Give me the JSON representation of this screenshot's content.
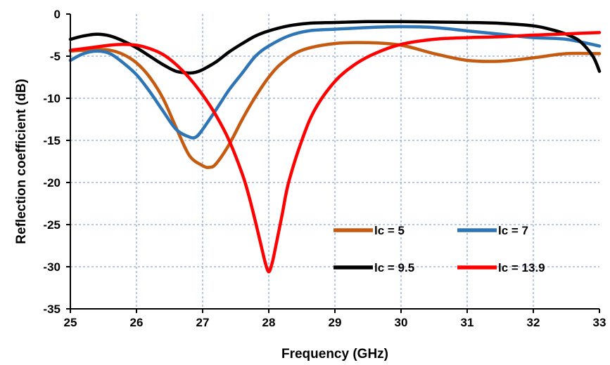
{
  "chart_data": {
    "type": "line",
    "title": "",
    "xlabel": "Frequency (GHz)",
    "ylabel": "Reflection coefficient (dB)",
    "xlim": [
      25,
      33
    ],
    "ylim": [
      -35,
      0
    ],
    "xticks": [
      "25",
      "26",
      "27",
      "28",
      "29",
      "30",
      "31",
      "32",
      "33"
    ],
    "yticks": [
      "0",
      "-5",
      "-10",
      "-15",
      "-20",
      "-25",
      "-30",
      "-35"
    ],
    "grid": true,
    "legend_position": "bottom-right",
    "series": [
      {
        "name": "lc = 5",
        "color": "#C55A11",
        "x": [
          25.0,
          25.2,
          25.4,
          25.6,
          25.8,
          26.0,
          26.2,
          26.4,
          26.6,
          26.8,
          27.0,
          27.1,
          27.2,
          27.4,
          27.6,
          27.8,
          28.0,
          28.2,
          28.5,
          29.0,
          29.5,
          30.0,
          30.5,
          31.0,
          31.5,
          32.0,
          32.5,
          33.0
        ],
        "y": [
          -4.4,
          -4.3,
          -4.2,
          -4.3,
          -4.8,
          -5.8,
          -7.5,
          -10.0,
          -13.5,
          -16.8,
          -18.0,
          -18.2,
          -17.8,
          -15.5,
          -12.5,
          -9.8,
          -7.5,
          -5.8,
          -4.3,
          -3.5,
          -3.4,
          -3.7,
          -4.7,
          -5.5,
          -5.6,
          -5.2,
          -4.7,
          -4.7
        ]
      },
      {
        "name": "lc = 7",
        "color": "#2E75B6",
        "x": [
          25.0,
          25.2,
          25.4,
          25.6,
          25.8,
          26.0,
          26.2,
          26.4,
          26.6,
          26.8,
          26.9,
          27.0,
          27.2,
          27.4,
          27.6,
          27.8,
          28.0,
          28.3,
          28.6,
          29.0,
          29.5,
          30.0,
          30.5,
          31.0,
          31.5,
          32.0,
          32.5,
          33.0
        ],
        "y": [
          -5.5,
          -4.7,
          -4.4,
          -4.7,
          -5.8,
          -7.2,
          -9.2,
          -11.5,
          -13.7,
          -14.6,
          -14.6,
          -13.7,
          -11.4,
          -9.0,
          -7.0,
          -5.0,
          -3.8,
          -2.6,
          -2.0,
          -1.8,
          -1.6,
          -1.5,
          -1.6,
          -2.0,
          -2.4,
          -2.8,
          -3.0,
          -3.8
        ]
      },
      {
        "name": "lc = 9.5",
        "color": "#000000",
        "x": [
          25.0,
          25.2,
          25.4,
          25.6,
          25.8,
          26.0,
          26.2,
          26.4,
          26.6,
          26.8,
          26.9,
          27.0,
          27.2,
          27.4,
          27.6,
          27.8,
          28.0,
          28.3,
          28.6,
          29.0,
          29.5,
          30.0,
          30.5,
          31.0,
          31.5,
          32.0,
          32.3,
          32.5,
          32.7,
          32.9,
          33.0
        ],
        "y": [
          -3.0,
          -2.6,
          -2.4,
          -2.6,
          -3.2,
          -4.0,
          -5.0,
          -6.0,
          -6.8,
          -7.0,
          -6.9,
          -6.6,
          -5.7,
          -4.5,
          -3.5,
          -2.6,
          -2.0,
          -1.4,
          -1.1,
          -1.0,
          -0.9,
          -0.9,
          -0.95,
          -1.0,
          -1.1,
          -1.4,
          -1.9,
          -2.4,
          -3.2,
          -5.0,
          -6.8
        ]
      },
      {
        "name": "lc = 13.9",
        "color": "#FF0000",
        "x": [
          25.0,
          25.3,
          25.6,
          25.8,
          26.0,
          26.2,
          26.4,
          26.6,
          26.8,
          27.0,
          27.2,
          27.4,
          27.6,
          27.7,
          27.8,
          27.9,
          27.95,
          28.0,
          28.05,
          28.1,
          28.2,
          28.3,
          28.5,
          28.7,
          29.0,
          29.3,
          29.6,
          30.0,
          30.5,
          31.0,
          31.5,
          32.0,
          32.5,
          33.0
        ],
        "y": [
          -4.3,
          -4.0,
          -3.7,
          -3.6,
          -3.7,
          -4.1,
          -4.8,
          -6.0,
          -7.6,
          -9.6,
          -12.0,
          -15.0,
          -19.0,
          -21.6,
          -24.7,
          -28.0,
          -29.6,
          -30.6,
          -29.6,
          -27.8,
          -23.9,
          -20.0,
          -15.0,
          -11.3,
          -8.0,
          -6.0,
          -4.7,
          -3.6,
          -3.0,
          -2.8,
          -2.7,
          -2.5,
          -2.35,
          -2.2
        ]
      }
    ]
  }
}
